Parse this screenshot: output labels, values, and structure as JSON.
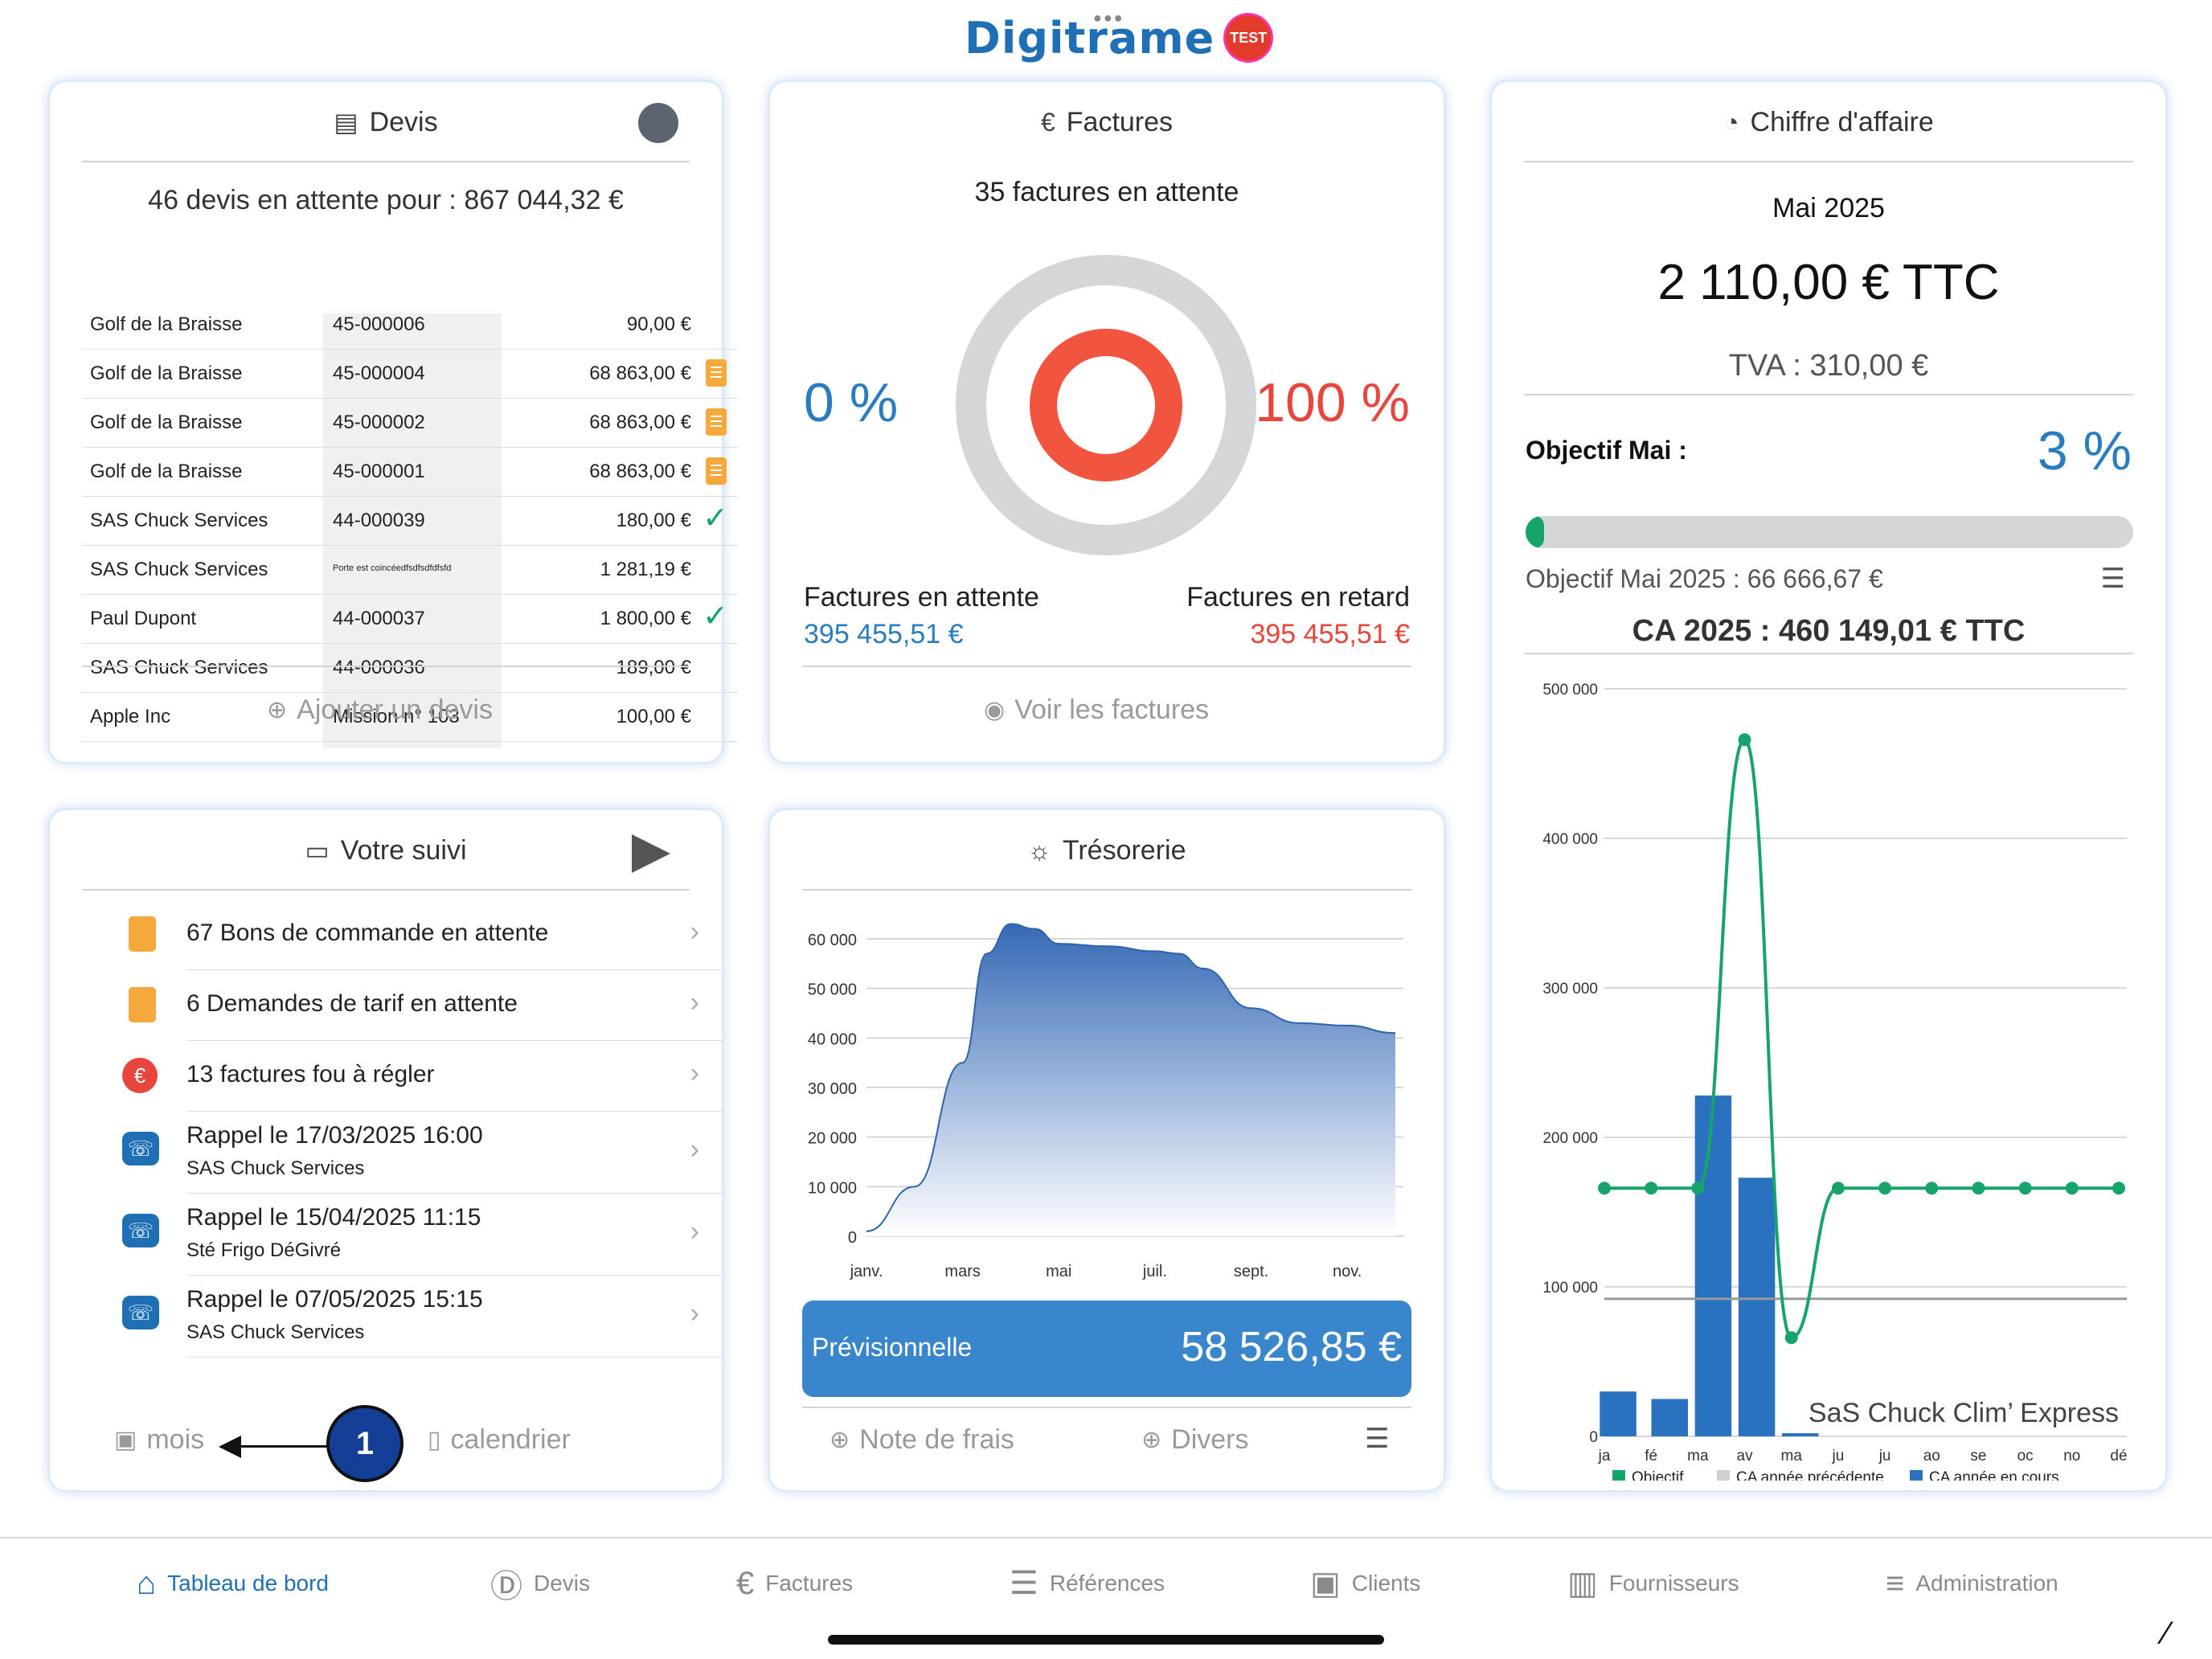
{
  "logo": {
    "text": "Digitrame",
    "badge": "TEST"
  },
  "devis": {
    "title": "Devis",
    "summary": "46 devis en attente pour : 867 044,32 €",
    "rows": [
      {
        "client": "Golf de la Braisse",
        "ref": "45-000006",
        "amount": "90,00 €",
        "status": ""
      },
      {
        "client": "Golf de la Braisse",
        "ref": "45-000004",
        "amount": "68 863,00 €",
        "status": "doc"
      },
      {
        "client": "Golf de la Braisse",
        "ref": "45-000002",
        "amount": "68 863,00 €",
        "status": "doc"
      },
      {
        "client": "Golf de la Braisse",
        "ref": "45-000001",
        "amount": "68 863,00 €",
        "status": "doc"
      },
      {
        "client": "SAS Chuck Services",
        "ref": "44-000039",
        "amount": "180,00 €",
        "status": "check"
      },
      {
        "client": "SAS Chuck Services",
        "ref": "Porte est coincéedfsdfsdfdfsfd",
        "amount": "1 281,19 €",
        "status": ""
      },
      {
        "client": "Paul Dupont",
        "ref": "44-000037",
        "amount": "1 800,00 €",
        "status": "check"
      },
      {
        "client": "SAS Chuck Services",
        "ref": "44-000036",
        "amount": "189,00 €",
        "status": ""
      },
      {
        "client": "Apple Inc",
        "ref": "Mission n° 103",
        "amount": "100,00 €",
        "status": ""
      }
    ],
    "add_label": "Ajouter un devis"
  },
  "factures": {
    "title": "Factures",
    "pending_count": "35 factures en attente",
    "left_pct": "0 %",
    "right_pct": "100 %",
    "pending_label": "Factures en attente",
    "pending_amount": "395 455,51 €",
    "late_label": "Factures en retard",
    "late_amount": "395 455,51 €",
    "view_label": "Voir les factures",
    "colors": {
      "blue": "#2a7cc0",
      "red": "#e8453c",
      "ring_outer": "#d5d6d8",
      "ring_inner": "#f2553f"
    }
  },
  "ca": {
    "title": "Chiffre d'affaire",
    "month": "Mai 2025",
    "amount": "2 110,00 € TTC",
    "tva": "TVA : 310,00 €",
    "objective_label": "Objectif Mai :",
    "objective_pct": "3 %",
    "progress": 0.03,
    "objective_line": "Objectif Mai 2025 : 66 666,67 €",
    "ca_year": "CA 2025 : 460 149,01 €  TTC",
    "watermark": "SaS Chuck Clim’ Express"
  },
  "suivi": {
    "title": "Votre suivi",
    "items": [
      {
        "icon": "document-icon",
        "text": "67 Bons de commande en attente",
        "sub": ""
      },
      {
        "icon": "document-icon",
        "text": "6 Demandes de tarif en attente",
        "sub": ""
      },
      {
        "icon": "euro-icon",
        "text": "13 factures fou à régler",
        "sub": ""
      },
      {
        "icon": "phone-icon",
        "text": "Rappel le 17/03/2025 16:00",
        "sub": "SAS Chuck Services"
      },
      {
        "icon": "phone-icon",
        "text": "Rappel le 15/04/2025 11:15",
        "sub": "Sté Frigo DéGivré"
      },
      {
        "icon": "phone-icon",
        "text": "Rappel le 07/05/2025 15:15",
        "sub": "SAS Chuck Services"
      }
    ],
    "mois_label": "mois",
    "calendrier_label": "calendrier",
    "marker": "1"
  },
  "tresorerie": {
    "title": "Trésorerie",
    "prev_label": "Prévisionnelle",
    "prev_amount": "58 526,85 €",
    "note_label": "Note de frais",
    "divers_label": "Divers"
  },
  "nav": {
    "items": [
      {
        "icon": "home-icon",
        "label": "Tableau de bord",
        "active": true
      },
      {
        "icon": "devis-icon",
        "label": "Devis",
        "active": false
      },
      {
        "icon": "euro-icon",
        "label": "Factures",
        "active": false
      },
      {
        "icon": "list-icon",
        "label": "Références",
        "active": false
      },
      {
        "icon": "clients-icon",
        "label": "Clients",
        "active": false
      },
      {
        "icon": "supplier-icon",
        "label": "Fournisseurs",
        "active": false
      },
      {
        "icon": "sliders-icon",
        "label": "Administration",
        "active": false
      }
    ]
  },
  "chart_data": [
    {
      "type": "area",
      "categories": [
        "janv.",
        "mars",
        "mai",
        "juil.",
        "sept.",
        "nov."
      ],
      "y_ticks": [
        "0",
        "10 000",
        "20 000",
        "30 000",
        "40 000",
        "50 000",
        "60 000"
      ],
      "ylim": [
        0,
        60000
      ],
      "x": [
        1,
        2,
        3,
        3.5,
        4,
        4.5,
        5,
        6,
        7,
        7.5,
        8,
        9,
        10,
        11,
        12
      ],
      "values": [
        1000,
        10000,
        35000,
        57000,
        63000,
        62000,
        59000,
        58500,
        57500,
        57000,
        54000,
        46000,
        43000,
        42500,
        41000
      ],
      "grid": true
    },
    {
      "type": "bar",
      "categories": [
        "ja",
        "fé",
        "ma",
        "av",
        "ma",
        "ju",
        "ju",
        "ao",
        "se",
        "oc",
        "no",
        "dé"
      ],
      "y_ticks": [
        "0",
        "100 000",
        "200 000",
        "300 000",
        "400 000",
        "500 000"
      ],
      "ylim": [
        0,
        500000
      ],
      "series": [
        {
          "name": "Objectif",
          "type": "line",
          "color": "#16a46b",
          "values": [
            166000,
            166000,
            166000,
            466000,
            66000,
            166000,
            166000,
            166000,
            166000,
            166000,
            166000,
            166000
          ]
        },
        {
          "name": "CA année précédente",
          "type": "line",
          "color": "#b5b5b5",
          "values": [
            92000,
            92000,
            92000,
            92000,
            92000,
            92000,
            92000,
            92000,
            92000,
            92000,
            92000,
            92000
          ]
        },
        {
          "name": "CA année en cours",
          "type": "bar",
          "color": "#2a72c0",
          "values": [
            30000,
            25000,
            228000,
            173000,
            2110,
            0,
            0,
            0,
            0,
            0,
            0,
            0
          ]
        }
      ],
      "legend": "bottom",
      "grid": true
    }
  ]
}
